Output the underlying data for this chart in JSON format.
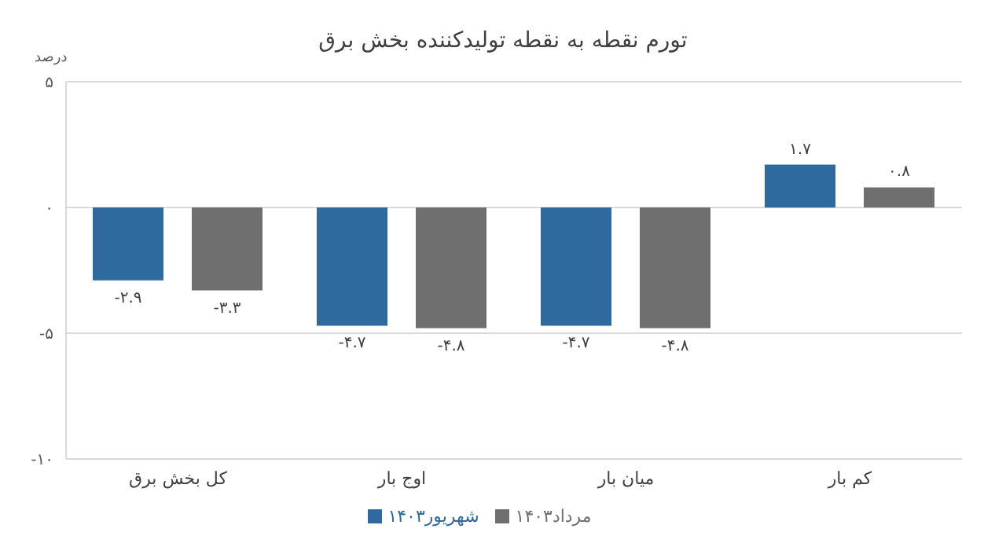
{
  "chart_data": {
    "type": "bar",
    "title": "تورم نقطه به نقطه تولیدکننده بخش برق",
    "ylabel": "درصد",
    "categories": [
      "کل بخش برق",
      "اوج بار",
      "میان بار",
      "کم بار"
    ],
    "series": [
      {
        "name": "شهریور۱۴۰۳",
        "color": "#2e6a9e",
        "values": [
          -2.9,
          -4.7,
          -4.7,
          1.7
        ],
        "value_labels": [
          "-۲.۹",
          "-۴.۷",
          "-۴.۷",
          "۱.۷"
        ]
      },
      {
        "name": "مرداد۱۴۰۳",
        "color": "#6f6f6f",
        "values": [
          -3.3,
          -4.8,
          -4.8,
          0.8
        ],
        "value_labels": [
          "-۳.۳",
          "-۴.۸",
          "-۴.۸",
          "۰.۸"
        ]
      }
    ],
    "ylim": [
      -10,
      5
    ],
    "yticks": [
      {
        "value": -10,
        "label": "-۱۰"
      },
      {
        "value": -5,
        "label": "-۵"
      },
      {
        "value": 0,
        "label": "۰"
      },
      {
        "value": 5,
        "label": "۵"
      }
    ],
    "grid": "y",
    "legend": "bottom"
  }
}
